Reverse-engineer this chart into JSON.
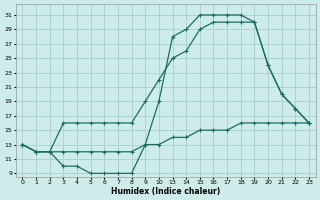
{
  "xlabel": "Humidex (Indice chaleur)",
  "bg_color": "#ceecea",
  "grid_color": "#aed4d0",
  "line_color": "#1a6e64",
  "xtick_labels": [
    "0",
    "1",
    "2",
    "3",
    "4",
    "5",
    "6",
    "7",
    "8",
    "9",
    "10",
    "13",
    "14",
    "15",
    "16",
    "17",
    "18",
    "19",
    "20",
    "21",
    "22",
    "23"
  ],
  "ytick_labels": [
    "9",
    "11",
    "13",
    "15",
    "17",
    "19",
    "21",
    "23",
    "25",
    "27",
    "29",
    "31"
  ],
  "ytick_vals": [
    9,
    11,
    13,
    15,
    17,
    19,
    21,
    23,
    25,
    27,
    29,
    31
  ],
  "ylim": [
    8.5,
    32.5
  ],
  "line1_xi": [
    0,
    1,
    2,
    3,
    4,
    5,
    6,
    7,
    8,
    9,
    10,
    11,
    12,
    13,
    14,
    15,
    16,
    17,
    18,
    19,
    20,
    21
  ],
  "line1_y": [
    13,
    12,
    12,
    10,
    10,
    9,
    9,
    9,
    9,
    13,
    19,
    28,
    29,
    31,
    31,
    31,
    31,
    30,
    24,
    20,
    18,
    16
  ],
  "line2_xi": [
    0,
    1,
    2,
    3,
    4,
    5,
    6,
    7,
    8,
    9,
    10,
    11,
    12,
    13,
    14,
    15,
    16,
    17,
    18,
    19,
    20,
    21
  ],
  "line2_y": [
    13,
    12,
    12,
    16,
    16,
    16,
    16,
    16,
    16,
    19,
    22,
    25,
    26,
    29,
    30,
    30,
    30,
    30,
    24,
    20,
    18,
    16
  ],
  "line3_xi": [
    0,
    1,
    2,
    3,
    4,
    5,
    6,
    7,
    8,
    9,
    10,
    11,
    12,
    13,
    14,
    15,
    16,
    17,
    18,
    19,
    20,
    21
  ],
  "line3_y": [
    13,
    12,
    12,
    12,
    12,
    12,
    12,
    12,
    12,
    13,
    13,
    14,
    14,
    15,
    15,
    15,
    16,
    16,
    16,
    16,
    16,
    16
  ]
}
